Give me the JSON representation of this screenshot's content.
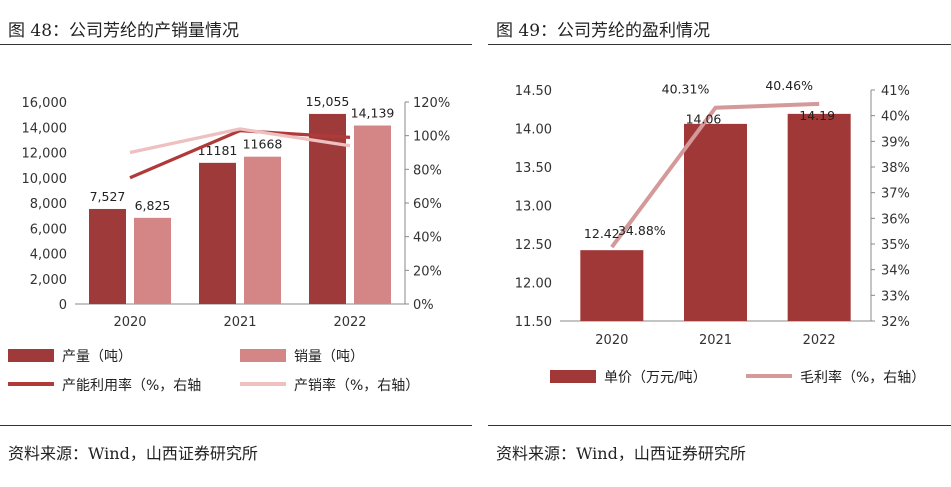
{
  "left": {
    "title": "图 48：公司芳纶的产销量情况",
    "source": "资料来源：Wind，山西证券研究所",
    "chart_data": {
      "type": "bar",
      "categories": [
        "2020",
        "2021",
        "2022"
      ],
      "y_ticks": [
        "16,000",
        "14,000",
        "12,000",
        "10,000",
        "8,000",
        "6,000",
        "4,000",
        "2,000",
        "0"
      ],
      "y2_ticks": [
        "120%",
        "100%",
        "80%",
        "60%",
        "40%",
        "20%",
        "0%"
      ],
      "ylim": [
        0,
        16000
      ],
      "y2lim": [
        0,
        120
      ],
      "bars": [
        {
          "name": "产量（吨）",
          "color": "#9e3a3a",
          "values": [
            7527,
            11181,
            15055
          ],
          "labels": [
            "7,527",
            "11181",
            "15,055"
          ]
        },
        {
          "name": "销量（吨）",
          "color": "#d48585",
          "values": [
            6825,
            11668,
            14139
          ],
          "labels": [
            "6,825",
            "11668",
            "14,139"
          ]
        }
      ],
      "lines": [
        {
          "name": "产能利用率（%，右轴",
          "color": "#b03a3a",
          "values": [
            75,
            103,
            99
          ]
        },
        {
          "name": "产销率（%，右轴）",
          "color": "#eec0c0",
          "values": [
            90,
            104,
            94
          ]
        }
      ]
    }
  },
  "right": {
    "title": "图 49：公司芳纶的盈利情况",
    "source": "资料来源：Wind，山西证券研究所",
    "chart_data": {
      "type": "bar",
      "categories": [
        "2020",
        "2021",
        "2022"
      ],
      "y_ticks": [
        "14.50",
        "14.00",
        "13.50",
        "13.00",
        "12.50",
        "12.00",
        "11.50"
      ],
      "y2_ticks": [
        "41%",
        "40%",
        "39%",
        "38%",
        "37%",
        "36%",
        "35%",
        "34%",
        "33%",
        "32%"
      ],
      "ylim": [
        11.5,
        14.5
      ],
      "y2lim": [
        32,
        41
      ],
      "bars": [
        {
          "name": "单价（万元/吨）",
          "color": "#a03838",
          "values": [
            12.42,
            14.06,
            14.19
          ],
          "labels": [
            "12.42",
            "14.06",
            "14.19"
          ]
        }
      ],
      "lines": [
        {
          "name": "毛利率（%，右轴）",
          "color": "#d49999",
          "values": [
            34.88,
            40.31,
            40.46
          ],
          "labels": [
            "34.88%",
            "40.31%",
            "40.46%"
          ]
        }
      ]
    }
  }
}
